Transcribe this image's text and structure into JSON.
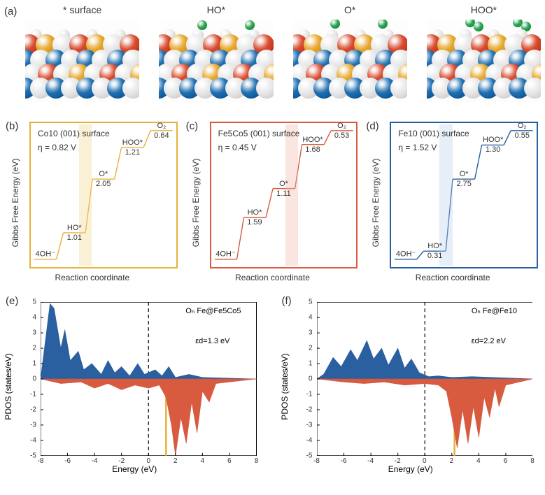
{
  "panel_labels": {
    "a": "(a)",
    "b": "(b)",
    "c": "(c)",
    "d": "(d)",
    "e": "(e)",
    "f": "(f)"
  },
  "mol_titles": [
    "* surface",
    "HO*",
    "O*",
    "HOO*"
  ],
  "atom_colors": {
    "white": "#e8e8e8",
    "blue": "#1f6fb0",
    "red": "#d84b2e",
    "yellow": "#e7a72c",
    "green": "#2da554"
  },
  "energy": {
    "ylabel": "Gibbs Free Energy (eV)",
    "xlabel": "Reaction coordinate",
    "b": {
      "color": "#e6b23a",
      "band_color": "#f2d589",
      "surface": "Co10 (001) surface",
      "eta": "η = 0.82 V",
      "steps": [
        {
          "label": "4OH⁻",
          "y": 0
        },
        {
          "label": "HO*",
          "y": 1.01,
          "dE": "1.01"
        },
        {
          "label": "O*",
          "y": 3.06,
          "dE": "2.05"
        },
        {
          "label": "HOO*",
          "y": 4.27,
          "dE": "1.21"
        },
        {
          "label": "O₂",
          "y": 4.91,
          "dE": "0.64"
        }
      ],
      "band_x": 0.33
    },
    "c": {
      "color": "#d85a3f",
      "band_color": "#f0b5a5",
      "surface": "Fe5Co5 (001) surface",
      "eta": "η = 0.45 V",
      "steps": [
        {
          "label": "4OH⁻",
          "y": 0
        },
        {
          "label": "HO*",
          "y": 1.59,
          "dE": "1.59"
        },
        {
          "label": "O*",
          "y": 2.7,
          "dE": "1.11"
        },
        {
          "label": "HOO*",
          "y": 4.38,
          "dE": "1.68"
        },
        {
          "label": "O₂",
          "y": 4.91,
          "dE": "0.53"
        }
      ],
      "band_x": 0.51
    },
    "d": {
      "color": "#2a5fa0",
      "band_color": "#b6cde8",
      "surface": "Fe10 (001) surface",
      "eta": "η = 1.52 V",
      "steps": [
        {
          "label": "4OH⁻",
          "y": 0
        },
        {
          "label": "HO*",
          "y": 0.31,
          "dE": "0.31"
        },
        {
          "label": "O*",
          "y": 3.06,
          "dE": "2.75"
        },
        {
          "label": "HOO*",
          "y": 4.36,
          "dE": "1.30"
        },
        {
          "label": "O₂",
          "y": 4.91,
          "dE": "0.55"
        }
      ],
      "band_x": 0.33
    }
  },
  "pdos": {
    "ylabel": "PDOS (states/eV)",
    "xlabel": "Energy (eV)",
    "xlim": [
      -8,
      8
    ],
    "ylim": [
      -5,
      5
    ],
    "xticks": [
      -8,
      -6,
      -4,
      -2,
      0,
      2,
      4,
      6,
      8
    ],
    "yticks": [
      -5,
      -4,
      -3,
      -2,
      -1,
      0,
      1,
      2,
      3,
      4,
      5
    ],
    "colors": {
      "up": "#2a5fa0",
      "down": "#d85a3f",
      "zero_line": "#000000",
      "ed_marker": "#e6b23a"
    },
    "e": {
      "title": "Oₕ Fe@Fe5Co5",
      "ed_label": "εd=1.3 eV",
      "ed_x": 1.3,
      "up": [
        [
          -8,
          0
        ],
        [
          -7.3,
          4.9
        ],
        [
          -7.0,
          4.6
        ],
        [
          -6.5,
          2.0
        ],
        [
          -6.2,
          3.2
        ],
        [
          -5.8,
          1.2
        ],
        [
          -5.2,
          1.8
        ],
        [
          -4.8,
          0.6
        ],
        [
          -4.2,
          1.0
        ],
        [
          -3.5,
          0.3
        ],
        [
          -3.0,
          1.2
        ],
        [
          -2.5,
          0.4
        ],
        [
          -2.0,
          0.8
        ],
        [
          -1.4,
          0.2
        ],
        [
          -0.8,
          1.0
        ],
        [
          -0.3,
          0.3
        ],
        [
          0.5,
          0.6
        ],
        [
          1.0,
          0.2
        ],
        [
          1.5,
          0.8
        ],
        [
          2.0,
          0.1
        ],
        [
          3.0,
          0.3
        ],
        [
          4.0,
          0.1
        ],
        [
          8,
          0
        ]
      ],
      "down": [
        [
          -8,
          0
        ],
        [
          -6.5,
          -0.3
        ],
        [
          -5.0,
          -0.2
        ],
        [
          -4.0,
          -0.6
        ],
        [
          -3.0,
          -0.3
        ],
        [
          -2.0,
          -0.7
        ],
        [
          -1.0,
          -0.4
        ],
        [
          0.0,
          -0.6
        ],
        [
          0.8,
          -0.4
        ],
        [
          1.3,
          -1.2
        ],
        [
          1.7,
          -3.0
        ],
        [
          2.0,
          -5.0
        ],
        [
          2.4,
          -2.5
        ],
        [
          2.8,
          -4.2
        ],
        [
          3.2,
          -1.5
        ],
        [
          3.6,
          -3.5
        ],
        [
          4.0,
          -0.8
        ],
        [
          4.5,
          -1.5
        ],
        [
          5.0,
          -0.3
        ],
        [
          8,
          0
        ]
      ]
    },
    "f": {
      "title": "Oₕ Fe@Fe10",
      "ed_label": "εd=2.2 eV",
      "ed_x": 2.2,
      "up": [
        [
          -8,
          0
        ],
        [
          -7.5,
          0.3
        ],
        [
          -6.8,
          1.4
        ],
        [
          -6.2,
          0.8
        ],
        [
          -5.5,
          1.9
        ],
        [
          -5.0,
          1.2
        ],
        [
          -4.3,
          2.5
        ],
        [
          -3.8,
          1.3
        ],
        [
          -3.2,
          2.0
        ],
        [
          -2.7,
          0.9
        ],
        [
          -2.0,
          2.0
        ],
        [
          -1.5,
          0.7
        ],
        [
          -1.0,
          1.3
        ],
        [
          -0.4,
          0.4
        ],
        [
          0.3,
          0.15
        ],
        [
          1.0,
          0.2
        ],
        [
          2.0,
          0.1
        ],
        [
          3.5,
          0.15
        ],
        [
          8,
          0
        ]
      ],
      "down": [
        [
          -8,
          0
        ],
        [
          -6.0,
          -0.2
        ],
        [
          -4.5,
          -0.3
        ],
        [
          -3.0,
          -0.2
        ],
        [
          -1.5,
          -0.4
        ],
        [
          0.0,
          -0.3
        ],
        [
          1.0,
          -0.4
        ],
        [
          1.6,
          -0.8
        ],
        [
          2.0,
          -2.5
        ],
        [
          2.4,
          -4.5
        ],
        [
          2.8,
          -2.0
        ],
        [
          3.2,
          -4.2
        ],
        [
          3.6,
          -1.8
        ],
        [
          4.0,
          -3.8
        ],
        [
          4.4,
          -1.2
        ],
        [
          4.8,
          -2.5
        ],
        [
          5.2,
          -0.6
        ],
        [
          5.5,
          -1.8
        ],
        [
          6.0,
          -0.4
        ],
        [
          8,
          0
        ]
      ]
    }
  }
}
